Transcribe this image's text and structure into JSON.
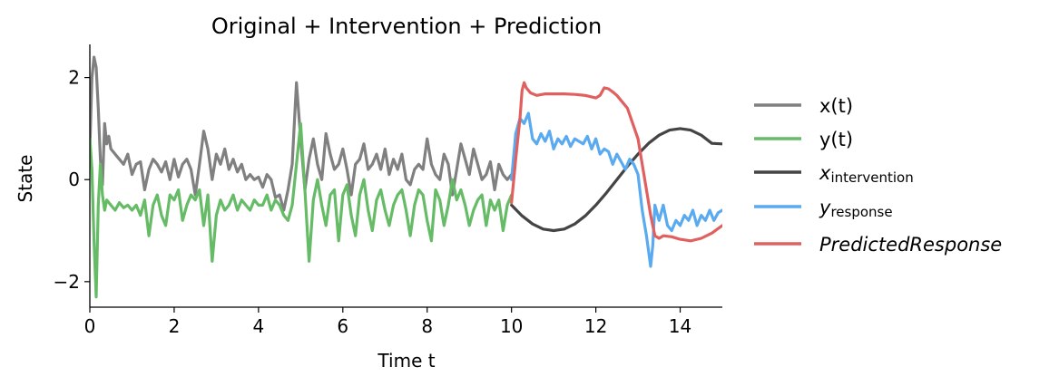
{
  "chart_data": {
    "type": "line",
    "title": "Original + Intervention + Prediction",
    "xlabel": "Time t",
    "ylabel": "State",
    "xlim": [
      0,
      15
    ],
    "ylim": [
      -2.5,
      2.65
    ],
    "xticks": [
      0,
      2,
      4,
      6,
      8,
      10,
      12,
      14
    ],
    "yticks": [
      -2,
      0,
      2
    ],
    "xtick_labels": [
      "0",
      "2",
      "4",
      "6",
      "8",
      "10",
      "12",
      "14"
    ],
    "ytick_labels": [
      "−2",
      "0",
      "2"
    ],
    "grid": false,
    "legend_position": "outside-right",
    "series": [
      {
        "name": "x(t)",
        "color": "#808080",
        "x": [
          0,
          0.05,
          0.1,
          0.15,
          0.2,
          0.25,
          0.3,
          0.35,
          0.4,
          0.45,
          0.5,
          0.6,
          0.7,
          0.8,
          0.9,
          1.0,
          1.1,
          1.2,
          1.3,
          1.4,
          1.5,
          1.6,
          1.7,
          1.8,
          1.9,
          2.0,
          2.1,
          2.2,
          2.3,
          2.4,
          2.5,
          2.6,
          2.7,
          2.8,
          2.9,
          3.0,
          3.1,
          3.2,
          3.3,
          3.4,
          3.5,
          3.6,
          3.7,
          3.8,
          3.9,
          4.0,
          4.1,
          4.2,
          4.3,
          4.4,
          4.5,
          4.6,
          4.7,
          4.8,
          4.9,
          5.0,
          5.1,
          5.2,
          5.3,
          5.4,
          5.5,
          5.6,
          5.7,
          5.8,
          5.9,
          6.0,
          6.1,
          6.2,
          6.3,
          6.4,
          6.5,
          6.6,
          6.7,
          6.8,
          6.9,
          7.0,
          7.1,
          7.2,
          7.3,
          7.4,
          7.5,
          7.6,
          7.7,
          7.8,
          7.9,
          8.0,
          8.1,
          8.2,
          8.3,
          8.4,
          8.5,
          8.6,
          8.7,
          8.8,
          8.9,
          9.0,
          9.1,
          9.2,
          9.3,
          9.4,
          9.5,
          9.6,
          9.7,
          9.8,
          9.9,
          10.0
        ],
        "y": [
          0.6,
          2.0,
          2.4,
          2.2,
          1.4,
          0.4,
          -0.1,
          1.1,
          0.7,
          0.85,
          0.6,
          0.5,
          0.4,
          0.3,
          0.5,
          0.1,
          0.3,
          0.35,
          -0.2,
          0.2,
          0.4,
          0.3,
          0.15,
          0.35,
          0.0,
          0.4,
          0.05,
          0.3,
          0.4,
          0.2,
          -0.3,
          0.3,
          0.95,
          0.6,
          0.0,
          0.5,
          0.3,
          0.6,
          0.2,
          0.4,
          0.15,
          0.3,
          0.0,
          0.1,
          0.0,
          0.05,
          -0.15,
          0.1,
          0.0,
          -0.35,
          -0.3,
          -0.6,
          -0.2,
          0.3,
          1.9,
          0.8,
          -0.2,
          0.4,
          0.8,
          0.3,
          0.0,
          0.9,
          0.5,
          0.2,
          0.3,
          0.6,
          0.2,
          -0.3,
          0.3,
          0.4,
          0.7,
          0.2,
          0.3,
          0.5,
          0.2,
          0.6,
          0.1,
          0.4,
          0.2,
          0.5,
          0.0,
          -0.1,
          0.2,
          0.3,
          0.2,
          0.8,
          0.3,
          0.1,
          0.0,
          0.5,
          0.3,
          -0.3,
          0.2,
          0.7,
          0.4,
          0.1,
          0.6,
          0.3,
          0.0,
          0.1,
          0.35,
          -0.2,
          0.3,
          0.1,
          0.0,
          0.1
        ]
      },
      {
        "name": "y(t)",
        "color": "#66bb66",
        "x": [
          0,
          0.05,
          0.1,
          0.15,
          0.2,
          0.25,
          0.3,
          0.35,
          0.4,
          0.5,
          0.6,
          0.7,
          0.8,
          0.9,
          1.0,
          1.1,
          1.2,
          1.3,
          1.4,
          1.5,
          1.6,
          1.7,
          1.8,
          1.9,
          2.0,
          2.1,
          2.2,
          2.3,
          2.4,
          2.5,
          2.6,
          2.7,
          2.8,
          2.9,
          3.0,
          3.1,
          3.2,
          3.3,
          3.4,
          3.5,
          3.6,
          3.7,
          3.8,
          3.9,
          4.0,
          4.1,
          4.2,
          4.3,
          4.4,
          4.5,
          4.6,
          4.7,
          4.8,
          4.9,
          5.0,
          5.1,
          5.2,
          5.3,
          5.4,
          5.5,
          5.6,
          5.7,
          5.8,
          5.9,
          6.0,
          6.1,
          6.2,
          6.3,
          6.4,
          6.5,
          6.6,
          6.7,
          6.8,
          6.9,
          7.0,
          7.1,
          7.2,
          7.3,
          7.4,
          7.5,
          7.6,
          7.7,
          7.8,
          7.9,
          8.0,
          8.1,
          8.2,
          8.3,
          8.4,
          8.5,
          8.6,
          8.7,
          8.8,
          8.9,
          9.0,
          9.1,
          9.2,
          9.3,
          9.4,
          9.5,
          9.6,
          9.7,
          9.8,
          9.9,
          10.0
        ],
        "y": [
          0.8,
          0.2,
          -1.2,
          -2.3,
          -0.5,
          0.3,
          -0.3,
          -0.6,
          -0.4,
          -0.5,
          -0.6,
          -0.45,
          -0.55,
          -0.5,
          -0.6,
          -0.5,
          -0.7,
          -0.4,
          -1.1,
          -0.5,
          -0.3,
          -0.7,
          -0.9,
          -0.3,
          -0.4,
          -0.2,
          -0.8,
          -0.5,
          -0.3,
          -0.4,
          -0.2,
          -0.9,
          -0.3,
          -1.6,
          -0.7,
          -0.4,
          -0.6,
          -0.5,
          -0.3,
          -0.6,
          -0.4,
          -0.5,
          -0.6,
          -0.4,
          -0.5,
          -0.5,
          -0.3,
          -0.6,
          -0.4,
          -0.5,
          -0.7,
          -0.8,
          -0.5,
          0.3,
          1.1,
          -0.2,
          -1.6,
          -0.4,
          0.0,
          -0.5,
          -0.9,
          -0.3,
          -0.2,
          -1.2,
          -0.3,
          -0.1,
          -0.7,
          -1.1,
          -0.3,
          0.0,
          -0.6,
          -1.0,
          -0.4,
          -0.2,
          -0.6,
          -0.9,
          -0.5,
          -0.3,
          -0.2,
          -0.6,
          -1.1,
          -0.5,
          -0.2,
          -0.3,
          -0.8,
          -1.2,
          -0.2,
          -0.4,
          -0.9,
          -0.5,
          0.0,
          -0.4,
          -0.2,
          -0.5,
          -0.9,
          -0.6,
          -0.4,
          -0.3,
          -0.9,
          -0.4,
          -0.6,
          -0.4,
          -1.0,
          -0.5,
          -0.3
        ]
      },
      {
        "name": "x_intervention",
        "color": "#444444",
        "x": [
          10.0,
          10.25,
          10.5,
          10.75,
          11.0,
          11.25,
          11.5,
          11.75,
          12.0,
          12.25,
          12.5,
          12.75,
          13.0,
          13.25,
          13.5,
          13.75,
          14.0,
          14.25,
          14.5,
          14.75,
          15.0
        ],
        "y": [
          -0.5,
          -0.71,
          -0.87,
          -0.97,
          -1.0,
          -0.97,
          -0.87,
          -0.71,
          -0.5,
          -0.26,
          0.0,
          0.26,
          0.5,
          0.71,
          0.87,
          0.97,
          1.0,
          0.97,
          0.87,
          0.71,
          0.7
        ]
      },
      {
        "name": "y_response",
        "color": "#5aaaf0",
        "x": [
          10.0,
          10.1,
          10.2,
          10.3,
          10.4,
          10.5,
          10.6,
          10.7,
          10.8,
          10.9,
          11.0,
          11.1,
          11.2,
          11.3,
          11.4,
          11.5,
          11.6,
          11.7,
          11.8,
          11.9,
          12.0,
          12.1,
          12.2,
          12.3,
          12.4,
          12.5,
          12.6,
          12.7,
          12.8,
          12.9,
          13.0,
          13.1,
          13.2,
          13.3,
          13.35,
          13.4,
          13.5,
          13.6,
          13.7,
          13.8,
          13.9,
          14.0,
          14.1,
          14.2,
          14.3,
          14.4,
          14.5,
          14.6,
          14.7,
          14.8,
          14.9,
          15.0
        ],
        "y": [
          0.0,
          0.9,
          1.2,
          1.1,
          1.3,
          0.8,
          0.7,
          0.9,
          0.75,
          0.95,
          0.6,
          0.8,
          0.7,
          0.85,
          0.65,
          0.8,
          0.75,
          0.7,
          0.85,
          0.6,
          0.8,
          0.5,
          0.6,
          0.55,
          0.3,
          0.5,
          0.35,
          0.2,
          0.4,
          0.3,
          0.1,
          -0.6,
          -1.1,
          -1.7,
          -1.3,
          -0.5,
          -0.8,
          -0.5,
          -0.9,
          -1.0,
          -0.8,
          -0.9,
          -0.7,
          -0.8,
          -0.6,
          -0.9,
          -0.7,
          -0.8,
          -0.6,
          -0.8,
          -0.65,
          -0.6
        ]
      },
      {
        "name": "PredictedResponse",
        "color": "#e06060",
        "x": [
          10.0,
          10.1,
          10.2,
          10.25,
          10.3,
          10.35,
          10.45,
          10.6,
          10.8,
          11.0,
          11.25,
          11.5,
          11.75,
          12.0,
          12.1,
          12.2,
          12.3,
          12.4,
          12.5,
          12.75,
          13.0,
          13.1,
          13.2,
          13.3,
          13.4,
          13.5,
          13.6,
          13.8,
          14.0,
          14.25,
          14.5,
          14.75,
          15.0
        ],
        "y": [
          -0.45,
          0.4,
          1.2,
          1.75,
          1.9,
          1.8,
          1.7,
          1.65,
          1.68,
          1.68,
          1.68,
          1.67,
          1.65,
          1.6,
          1.65,
          1.8,
          1.78,
          1.72,
          1.65,
          1.4,
          0.8,
          0.3,
          -0.2,
          -0.7,
          -1.1,
          -1.15,
          -1.1,
          -1.12,
          -1.17,
          -1.2,
          -1.15,
          -1.05,
          -0.9
        ]
      }
    ]
  },
  "legend": {
    "entries": [
      {
        "key": "x_t",
        "color": "#808080",
        "base": "x(t)",
        "sub": "",
        "italic": false
      },
      {
        "key": "y_t",
        "color": "#66bb66",
        "base": "y(t)",
        "sub": "",
        "italic": false
      },
      {
        "key": "x_intervention",
        "color": "#444444",
        "base": "x",
        "sub": "intervention",
        "italic": true
      },
      {
        "key": "y_response",
        "color": "#5aaaf0",
        "base": "y",
        "sub": "response",
        "italic": true
      },
      {
        "key": "predicted_response",
        "color": "#e06060",
        "base": "PredictedResponse",
        "sub": "",
        "italic": true
      }
    ]
  }
}
